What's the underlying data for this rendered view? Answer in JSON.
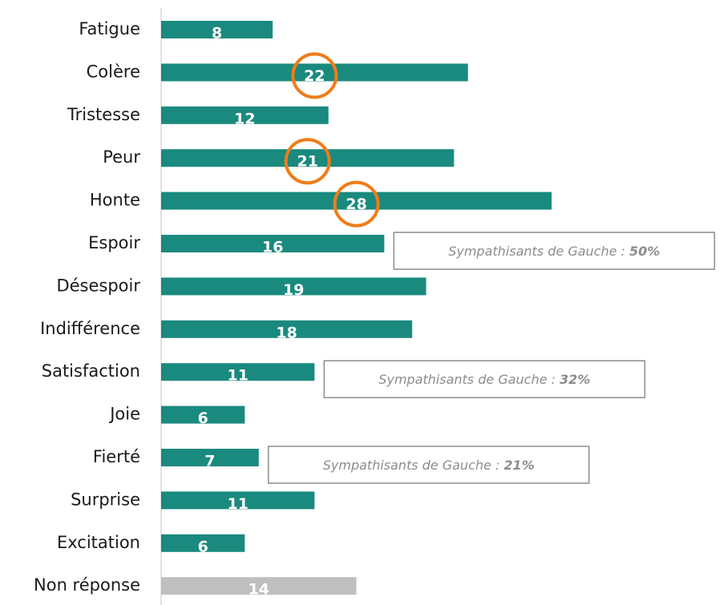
{
  "chart_data": {
    "type": "bar",
    "orientation": "horizontal",
    "categories": [
      "Fatigue",
      "Colère",
      "Tristesse",
      "Peur",
      "Honte",
      "Espoir",
      "Désespoir",
      "Indifférence",
      "Satisfaction",
      "Joie",
      "Fierté",
      "Surprise",
      "Excitation",
      "Non réponse"
    ],
    "values": [
      8,
      22,
      12,
      21,
      28,
      16,
      19,
      18,
      11,
      6,
      7,
      11,
      6,
      14
    ],
    "colors": [
      "#1a8a7e",
      "#1a8a7e",
      "#1a8a7e",
      "#1a8a7e",
      "#1a8a7e",
      "#1a8a7e",
      "#1a8a7e",
      "#1a8a7e",
      "#1a8a7e",
      "#1a8a7e",
      "#1a8a7e",
      "#1a8a7e",
      "#1a8a7e",
      "#bfbfbf"
    ],
    "highlighted": [
      "Colère",
      "Peur",
      "Honte"
    ],
    "highlight_color": "#f07c18",
    "annotations": [
      {
        "category": "Espoir",
        "text": "Sympathisants de Gauche :",
        "value": "50%"
      },
      {
        "category": "Satisfaction",
        "text": "Sympathisants de Gauche :",
        "value": "32%"
      },
      {
        "category": "Fierté",
        "text": "Sympathisants de Gauche :",
        "value": "21%"
      }
    ]
  }
}
